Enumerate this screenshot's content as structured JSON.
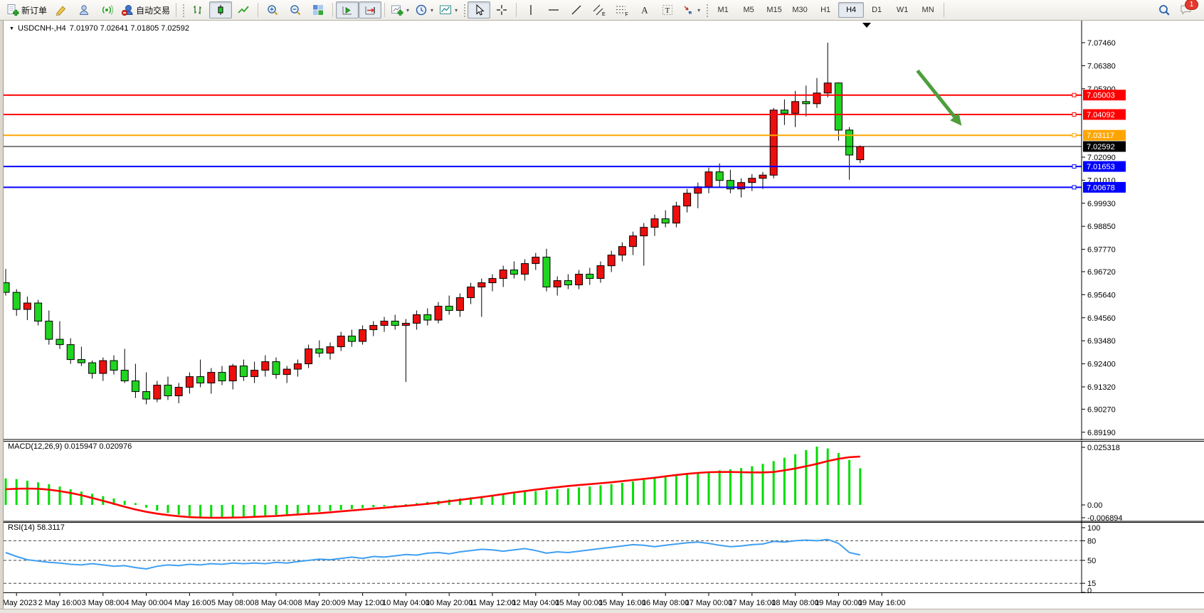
{
  "glyphs": {
    "dropdown": "▾",
    "triangle_down": "▼",
    "text_tool": "A",
    "textbox_tool": "T",
    "channel_letter": "E",
    "fibo_letter": "F"
  },
  "toolbar": {
    "new_order": "新订单",
    "auto_trading": "自动交易",
    "timeframes": [
      "M1",
      "M5",
      "M15",
      "M30",
      "H1",
      "H4",
      "D1",
      "W1",
      "MN"
    ],
    "active_timeframe": "H4",
    "notification_count": "1"
  },
  "chart": {
    "symbol": "USDCNH-,H4",
    "ohlc": "7.01970 7.02641 7.01805 7.02592",
    "macd_label": "MACD(12,26,9) 0.015947 0.020976",
    "rsi_label": "RSI(14) 58.3117"
  },
  "chart_data": {
    "type": "candlestick",
    "title": "USDCNH-,H4",
    "timeframe": "H4",
    "ohlc_display": {
      "open": "7.01970",
      "high": "7.02641",
      "low": "7.01805",
      "close": "7.02592"
    },
    "colors": {
      "candle_up": "#ED0E0E",
      "candle_down": "#1FD51F",
      "candle_border": "#000000",
      "line_red": "#FF0000",
      "line_orange": "#FFA500",
      "line_blue": "#0000FF",
      "bid_line": "#000000",
      "macd_histogram": "#00DD00",
      "macd_signal": "#FF0000",
      "rsi_line": "#3F9FF2",
      "arrow": "#4D9E3C",
      "axis_text": "#000000"
    },
    "ylim": [
      6.8885,
      7.0853
    ],
    "grid": false,
    "y_ticks": [
      "7.07460",
      "7.06380",
      "7.05300",
      "7.02090",
      "7.01010",
      "6.99930",
      "6.98850",
      "6.97770",
      "6.96720",
      "6.95640",
      "6.94560",
      "6.93480",
      "6.92400",
      "6.91320",
      "6.90270",
      "6.89190"
    ],
    "price_lines": [
      {
        "price": 7.05003,
        "label": "7.05003",
        "color": "#FF0000",
        "width": 2,
        "style": "level"
      },
      {
        "price": 7.04092,
        "label": "7.04092",
        "color": "#FF0000",
        "width": 2,
        "style": "level"
      },
      {
        "price": 7.03117,
        "label": "7.03117",
        "color": "#FFA500",
        "width": 2,
        "style": "level"
      },
      {
        "price": 7.02592,
        "label": "7.02592",
        "color": "#000000",
        "width": 1,
        "style": "bid"
      },
      {
        "price": 7.01653,
        "label": "7.01653",
        "color": "#0000FF",
        "width": 2,
        "style": "level"
      },
      {
        "price": 7.00678,
        "label": "7.00678",
        "color": "#0000FF",
        "width": 2,
        "style": "level"
      }
    ],
    "candles": [
      [
        6.962,
        6.9685,
        6.956,
        6.9575
      ],
      [
        6.9575,
        6.959,
        6.9465,
        6.9495
      ],
      [
        6.9495,
        6.9555,
        6.9445,
        6.9525
      ],
      [
        6.9525,
        6.954,
        6.942,
        6.944
      ],
      [
        6.944,
        6.949,
        6.933,
        6.9355
      ],
      [
        6.9355,
        6.944,
        6.931,
        6.933
      ],
      [
        6.933,
        6.936,
        6.924,
        6.926
      ],
      [
        6.926,
        6.932,
        6.923,
        6.9245
      ],
      [
        6.9245,
        6.9255,
        6.917,
        6.9195
      ],
      [
        6.9195,
        6.927,
        6.916,
        6.9255
      ],
      [
        6.9255,
        6.928,
        6.919,
        6.921
      ],
      [
        6.921,
        6.931,
        6.915,
        6.916
      ],
      [
        6.916,
        6.924,
        6.908,
        6.911
      ],
      [
        6.911,
        6.92,
        6.905,
        6.9075
      ],
      [
        6.9075,
        6.916,
        6.906,
        6.914
      ],
      [
        6.914,
        6.918,
        6.907,
        6.909
      ],
      [
        6.909,
        6.915,
        6.9055,
        6.913
      ],
      [
        6.913,
        6.92,
        6.91,
        6.918
      ],
      [
        6.918,
        6.926,
        6.913,
        6.915
      ],
      [
        6.915,
        6.922,
        6.91,
        6.92
      ],
      [
        6.92,
        6.923,
        6.914,
        6.916
      ],
      [
        6.916,
        6.924,
        6.912,
        6.923
      ],
      [
        6.923,
        6.926,
        6.916,
        6.918
      ],
      [
        6.918,
        6.925,
        6.915,
        6.921
      ],
      [
        6.921,
        6.928,
        6.918,
        6.925
      ],
      [
        6.925,
        6.927,
        6.917,
        6.919
      ],
      [
        6.919,
        6.923,
        6.915,
        6.9215
      ],
      [
        6.9215,
        6.926,
        6.918,
        6.924
      ],
      [
        6.924,
        6.933,
        6.922,
        6.931
      ],
      [
        6.931,
        6.935,
        6.927,
        6.929
      ],
      [
        6.929,
        6.934,
        6.926,
        6.932
      ],
      [
        6.932,
        6.939,
        6.93,
        6.937
      ],
      [
        6.937,
        6.94,
        6.932,
        6.9345
      ],
      [
        6.9345,
        6.942,
        6.933,
        6.94
      ],
      [
        6.94,
        6.944,
        6.937,
        6.942
      ],
      [
        6.942,
        6.946,
        6.939,
        6.944
      ],
      [
        6.944,
        6.947,
        6.94,
        6.942
      ],
      [
        6.942,
        6.945,
        6.9155,
        6.943
      ],
      [
        6.943,
        6.949,
        6.94,
        6.947
      ],
      [
        6.947,
        6.95,
        6.942,
        6.9445
      ],
      [
        6.9445,
        6.953,
        6.943,
        6.951
      ],
      [
        6.951,
        6.956,
        6.947,
        6.949
      ],
      [
        6.949,
        6.957,
        6.946,
        6.955
      ],
      [
        6.955,
        6.962,
        6.952,
        6.96
      ],
      [
        6.96,
        6.964,
        6.946,
        6.962
      ],
      [
        6.962,
        6.966,
        6.958,
        6.964
      ],
      [
        6.964,
        6.97,
        6.96,
        6.968
      ],
      [
        6.968,
        6.972,
        6.964,
        6.966
      ],
      [
        6.966,
        6.973,
        6.963,
        6.971
      ],
      [
        6.971,
        6.976,
        6.968,
        6.974
      ],
      [
        6.974,
        6.978,
        6.958,
        6.96
      ],
      [
        6.96,
        6.965,
        6.956,
        6.963
      ],
      [
        6.963,
        6.966,
        6.959,
        6.961
      ],
      [
        6.961,
        6.968,
        6.959,
        6.966
      ],
      [
        6.966,
        6.969,
        6.961,
        6.964
      ],
      [
        6.964,
        6.972,
        6.962,
        6.97
      ],
      [
        6.97,
        6.977,
        6.967,
        6.975
      ],
      [
        6.975,
        6.981,
        6.972,
        6.979
      ],
      [
        6.979,
        6.986,
        6.975,
        6.984
      ],
      [
        6.984,
        6.99,
        6.97,
        6.988
      ],
      [
        6.988,
        6.994,
        6.984,
        6.992
      ],
      [
        6.992,
        6.996,
        6.988,
        6.99
      ],
      [
        6.99,
        7.0,
        6.988,
        6.998
      ],
      [
        6.998,
        7.006,
        6.995,
        7.004
      ],
      [
        7.004,
        7.009,
        6.997,
        7.007
      ],
      [
        7.007,
        7.016,
        7.004,
        7.014
      ],
      [
        7.014,
        7.018,
        7.007,
        7.01
      ],
      [
        7.01,
        7.015,
        7.004,
        7.006
      ],
      [
        7.006,
        7.011,
        7.002,
        7.009
      ],
      [
        7.009,
        7.013,
        7.005,
        7.011
      ],
      [
        7.011,
        7.014,
        7.006,
        7.0125
      ],
      [
        7.0125,
        7.044,
        7.011,
        7.043
      ],
      [
        7.043,
        7.048,
        7.036,
        7.0415
      ],
      [
        7.0415,
        7.052,
        7.035,
        7.047
      ],
      [
        7.047,
        7.0545,
        7.04,
        7.046
      ],
      [
        7.046,
        7.058,
        7.044,
        7.051
      ],
      [
        7.051,
        7.0746,
        7.049,
        7.0557
      ],
      [
        7.0557,
        7.056,
        7.0286,
        7.0336
      ],
      [
        7.0336,
        7.035,
        7.0103,
        7.0219
      ],
      [
        7.0197,
        7.0264,
        7.0181,
        7.0259
      ]
    ],
    "time_labels": [
      "2 May 2023",
      "2 May 16:00",
      "3 May 08:00",
      "4 May 00:00",
      "4 May 16:00",
      "5 May 08:00",
      "8 May 04:00",
      "8 May 20:00",
      "9 May 12:00",
      "10 May 04:00",
      "10 May 20:00",
      "11 May 12:00",
      "12 May 04:00",
      "15 May 00:00",
      "15 May 16:00",
      "16 May 08:00",
      "17 May 00:00",
      "17 May 16:00",
      "18 May 08:00",
      "19 May 00:00",
      "19 May 16:00"
    ],
    "arrow_annotation": {
      "from_bar": 84.3,
      "from_price": 7.0615,
      "to_bar": 88.3,
      "to_price": 7.0362
    },
    "macd": {
      "label": "MACD(12,26,9)",
      "values_display": [
        "0.015947",
        "0.020976"
      ],
      "ticks": [
        "0.025318",
        "0.00",
        "-0.006894"
      ],
      "histogram": [
        0.0115,
        0.0112,
        0.0105,
        0.0098,
        0.009,
        0.008,
        0.0068,
        0.0058,
        0.0048,
        0.0038,
        0.0028,
        0.0018,
        0.0008,
        -0.0012,
        -0.0025,
        -0.0035,
        -0.0043,
        -0.0048,
        -0.0052,
        -0.0055,
        -0.0056,
        -0.0055,
        -0.0053,
        -0.005,
        -0.0047,
        -0.0044,
        -0.0041,
        -0.0038,
        -0.0034,
        -0.003,
        -0.0026,
        -0.0022,
        -0.0018,
        -0.0014,
        -0.001,
        -0.0006,
        -0.0002,
        0.0003,
        0.0008,
        0.0013,
        0.0018,
        0.0023,
        0.0028,
        0.0033,
        0.0038,
        0.0043,
        0.0048,
        0.0052,
        0.0056,
        0.006,
        0.0064,
        0.0068,
        0.0072,
        0.0076,
        0.008,
        0.0085,
        0.009,
        0.0096,
        0.0102,
        0.0108,
        0.0114,
        0.012,
        0.0126,
        0.0132,
        0.0138,
        0.0144,
        0.015,
        0.0155,
        0.016,
        0.0168,
        0.0178,
        0.019,
        0.0205,
        0.022,
        0.0238,
        0.0253,
        0.0245,
        0.0225,
        0.0195,
        0.0159
      ],
      "signal": [
        0.0068,
        0.007,
        0.0071,
        0.007,
        0.0066,
        0.006,
        0.0052,
        0.0042,
        0.003,
        0.0018,
        0.0005,
        -0.0008,
        -0.002,
        -0.003,
        -0.0038,
        -0.0044,
        -0.0049,
        -0.0053,
        -0.0055,
        -0.0056,
        -0.0056,
        -0.0055,
        -0.0054,
        -0.0052,
        -0.005,
        -0.0048,
        -0.0045,
        -0.0042,
        -0.0039,
        -0.0036,
        -0.0032,
        -0.0028,
        -0.0024,
        -0.002,
        -0.0016,
        -0.0012,
        -0.0008,
        -0.0004,
        0.0,
        0.0005,
        0.001,
        0.0016,
        0.0022,
        0.0028,
        0.0034,
        0.004,
        0.0047,
        0.0054,
        0.006,
        0.0066,
        0.0072,
        0.0077,
        0.0082,
        0.0086,
        0.009,
        0.0094,
        0.0098,
        0.0103,
        0.0108,
        0.0113,
        0.0118,
        0.0124,
        0.013,
        0.0135,
        0.0139,
        0.0142,
        0.0143,
        0.0143,
        0.0142,
        0.0141,
        0.0141,
        0.0143,
        0.015,
        0.0158,
        0.0168,
        0.0178,
        0.019,
        0.02,
        0.0207,
        0.021
      ]
    },
    "rsi": {
      "label": "RSI(14)",
      "value_display": "58.3117",
      "levels": [
        100,
        80,
        50,
        15,
        0
      ],
      "dashed_levels": [
        80,
        50,
        15
      ],
      "values": [
        62,
        56,
        51,
        49,
        47,
        46,
        44,
        43,
        45,
        43,
        41,
        42,
        39,
        37,
        41,
        43,
        42,
        44,
        43,
        45,
        44,
        46,
        45,
        46,
        45,
        47,
        46,
        48,
        50,
        52,
        51,
        53,
        55,
        53,
        56,
        55,
        57,
        59,
        58,
        61,
        62,
        60,
        63,
        65,
        67,
        66,
        64,
        66,
        68,
        65,
        61,
        63,
        62,
        64,
        66,
        68,
        70,
        72,
        74,
        73,
        71,
        73,
        75,
        77,
        78,
        76,
        73,
        71,
        72,
        74,
        75,
        79,
        78,
        80,
        81,
        80,
        82,
        76,
        62,
        58.3
      ]
    }
  }
}
